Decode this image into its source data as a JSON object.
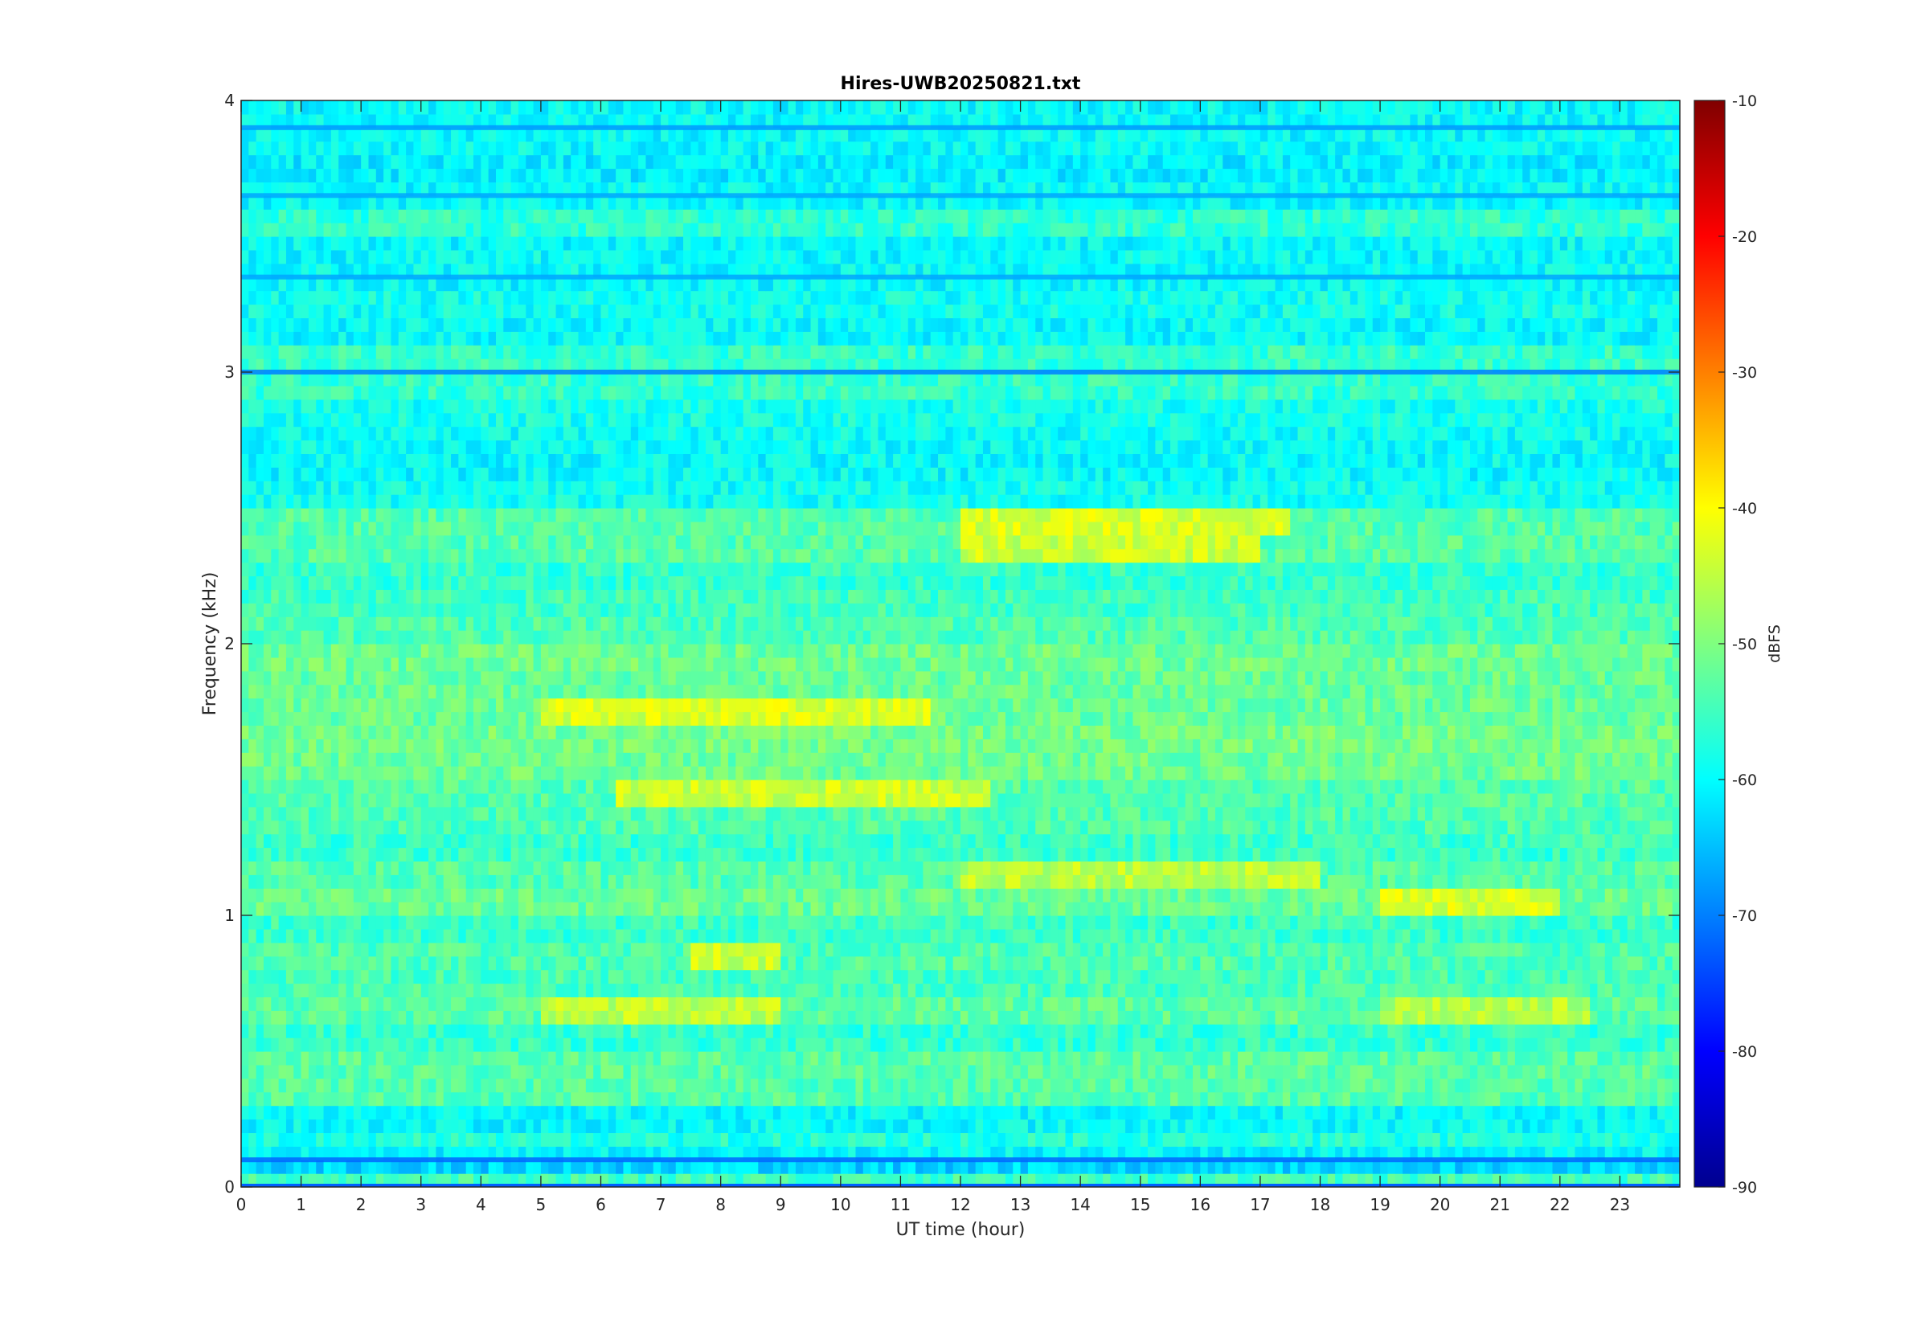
{
  "chart_data": {
    "type": "heatmap",
    "title": "Hires-UWB20250821.txt",
    "xlabel": "UT time (hour)",
    "ylabel": "Frequency (kHz)",
    "xlim": [
      0,
      24
    ],
    "ylim": [
      0,
      4
    ],
    "x_ticks": [
      "0",
      "1",
      "2",
      "3",
      "4",
      "5",
      "6",
      "7",
      "8",
      "9",
      "10",
      "11",
      "12",
      "13",
      "14",
      "15",
      "16",
      "17",
      "18",
      "19",
      "20",
      "21",
      "22",
      "23"
    ],
    "y_ticks": [
      "0",
      "1",
      "2",
      "3",
      "4"
    ],
    "colorbar": {
      "label": "dBFS",
      "range": [
        -90,
        -10
      ],
      "ticks": [
        "-10",
        "-20",
        "-30",
        "-40",
        "-50",
        "-60",
        "-70",
        "-80",
        "-90"
      ],
      "colormap": "jet"
    },
    "background_level_dbfs": -60,
    "bands": [
      {
        "freq_khz": 0.05,
        "level_dbfs": -50
      },
      {
        "freq_khz": 0.1,
        "level_dbfs": -72
      },
      {
        "freq_khz": 0.15,
        "level_dbfs": -55
      },
      {
        "freq_khz": 0.35,
        "level_dbfs": -47
      },
      {
        "freq_khz": 0.45,
        "level_dbfs": -46
      },
      {
        "freq_khz": 0.55,
        "level_dbfs": -52
      },
      {
        "freq_khz": 0.65,
        "level_dbfs": -46
      },
      {
        "freq_khz": 0.75,
        "level_dbfs": -49
      },
      {
        "freq_khz": 0.85,
        "level_dbfs": -48
      },
      {
        "freq_khz": 0.95,
        "level_dbfs": -51
      },
      {
        "freq_khz": 1.05,
        "level_dbfs": -44
      },
      {
        "freq_khz": 1.15,
        "level_dbfs": -47
      },
      {
        "freq_khz": 1.25,
        "level_dbfs": -51
      },
      {
        "freq_khz": 1.35,
        "level_dbfs": -48
      },
      {
        "freq_khz": 1.45,
        "level_dbfs": -47
      },
      {
        "freq_khz": 1.55,
        "level_dbfs": -43
      },
      {
        "freq_khz": 1.65,
        "level_dbfs": -42
      },
      {
        "freq_khz": 1.75,
        "level_dbfs": -44
      },
      {
        "freq_khz": 1.85,
        "level_dbfs": -44
      },
      {
        "freq_khz": 1.95,
        "level_dbfs": -43
      },
      {
        "freq_khz": 2.05,
        "level_dbfs": -48
      },
      {
        "freq_khz": 2.15,
        "level_dbfs": -50
      },
      {
        "freq_khz": 2.25,
        "level_dbfs": -52
      },
      {
        "freq_khz": 2.35,
        "level_dbfs": -47
      },
      {
        "freq_khz": 2.45,
        "level_dbfs": -47
      },
      {
        "freq_khz": 2.55,
        "level_dbfs": -58
      },
      {
        "freq_khz": 2.65,
        "level_dbfs": -60
      },
      {
        "freq_khz": 2.75,
        "level_dbfs": -59
      },
      {
        "freq_khz": 2.85,
        "level_dbfs": -57
      },
      {
        "freq_khz": 2.95,
        "level_dbfs": -52
      },
      {
        "freq_khz": 3.05,
        "level_dbfs": -52
      },
      {
        "freq_khz": 3.25,
        "level_dbfs": -58
      },
      {
        "freq_khz": 3.45,
        "level_dbfs": -60
      },
      {
        "freq_khz": 3.55,
        "level_dbfs": -53
      },
      {
        "freq_khz": 3.75,
        "level_dbfs": -62
      },
      {
        "freq_khz": 3.95,
        "level_dbfs": -60
      }
    ],
    "dark_bands": [
      {
        "freq_khz": 0.1,
        "level_dbfs": -72
      },
      {
        "freq_khz": 3.0,
        "level_dbfs": -70
      },
      {
        "freq_khz": 3.9,
        "level_dbfs": -68
      },
      {
        "freq_khz": 3.65,
        "level_dbfs": -67
      },
      {
        "freq_khz": 3.35,
        "level_dbfs": -67
      }
    ],
    "events": [
      {
        "t_start": 12.0,
        "t_end": 17.5,
        "freq_khz": 2.45,
        "level_dbfs": -36
      },
      {
        "t_start": 12.0,
        "t_end": 17.0,
        "freq_khz": 2.35,
        "level_dbfs": -38
      },
      {
        "t_start": 5.0,
        "t_end": 11.5,
        "freq_khz": 1.75,
        "level_dbfs": -37
      },
      {
        "t_start": 6.2,
        "t_end": 12.5,
        "freq_khz": 1.45,
        "level_dbfs": -38
      },
      {
        "t_start": 12.0,
        "t_end": 18.0,
        "freq_khz": 1.15,
        "level_dbfs": -40
      },
      {
        "t_start": 19.0,
        "t_end": 22.0,
        "freq_khz": 1.05,
        "level_dbfs": -37
      },
      {
        "t_start": 5.0,
        "t_end": 9.0,
        "freq_khz": 0.65,
        "level_dbfs": -40
      },
      {
        "t_start": 19.0,
        "t_end": 22.5,
        "freq_khz": 0.65,
        "level_dbfs": -41
      },
      {
        "t_start": 7.5,
        "t_end": 9.0,
        "freq_khz": 0.85,
        "level_dbfs": -38
      }
    ]
  }
}
